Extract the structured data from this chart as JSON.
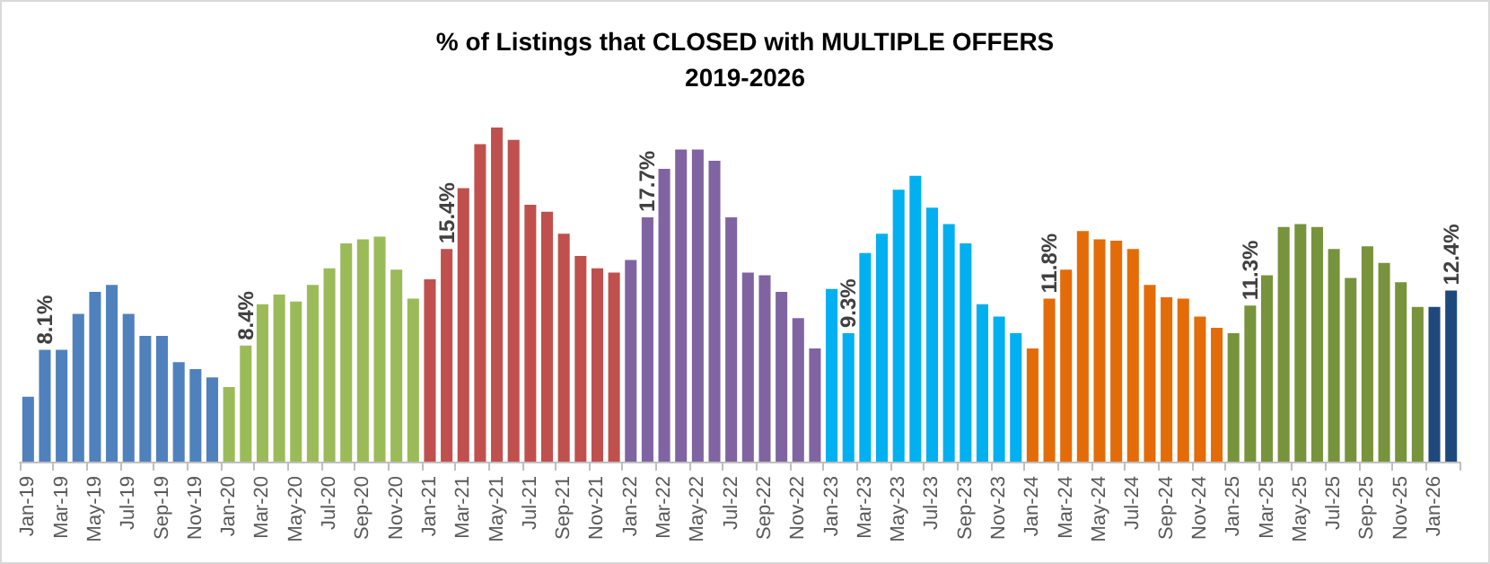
{
  "chart_data": {
    "type": "bar",
    "title": "% of Listings that CLOSED with MULTIPLE OFFERS",
    "subtitle": "2019-2026",
    "categories": [
      "Jan-19",
      null,
      "Mar-19",
      null,
      "May-19",
      null,
      "Jul-19",
      null,
      "Sep-19",
      null,
      "Nov-19",
      null,
      "Jan-20",
      null,
      "Mar-20",
      null,
      "May-20",
      null,
      "Jul-20",
      null,
      "Sep-20",
      null,
      "Nov-20",
      null,
      "Jan-21",
      null,
      "Mar-21",
      null,
      "May-21",
      null,
      "Jul-21",
      null,
      "Sep-21",
      null,
      "Nov-21",
      null,
      "Jan-22",
      null,
      "Mar-22",
      null,
      "May-22",
      null,
      "Jul-22",
      null,
      "Sep-22",
      null,
      "Nov-22",
      null,
      "Jan-23",
      null,
      "Mar-23",
      null,
      "May-23",
      null,
      "Jul-23",
      null,
      "Sep-23",
      null,
      "Nov-23",
      null,
      "Jan-24",
      null,
      "Mar-24",
      null,
      "May-24",
      null,
      "Jul-24",
      null,
      "Sep-24",
      null,
      "Nov-24",
      null,
      "Jan-25",
      null,
      "Mar-25",
      null,
      "May-25",
      null,
      "Jul-25",
      null,
      "Sep-25",
      null,
      "Nov-25",
      null,
      "Jan-26",
      null
    ],
    "values": [
      4.7,
      8.1,
      8.1,
      10.7,
      12.3,
      12.8,
      10.7,
      9.1,
      9.1,
      7.2,
      6.7,
      6.1,
      5.4,
      8.4,
      11.4,
      12.1,
      11.6,
      12.8,
      14.0,
      15.8,
      16.1,
      16.3,
      13.9,
      11.8,
      13.2,
      15.4,
      19.8,
      23.0,
      24.2,
      23.3,
      18.6,
      18.1,
      16.5,
      14.9,
      14.0,
      13.7,
      14.6,
      17.7,
      21.2,
      22.6,
      22.6,
      21.8,
      17.7,
      13.7,
      13.5,
      12.3,
      10.4,
      8.2,
      12.5,
      9.3,
      15.1,
      16.5,
      19.7,
      20.7,
      18.4,
      17.2,
      15.8,
      11.4,
      10.5,
      9.3,
      8.2,
      11.8,
      13.9,
      16.7,
      16.1,
      16.0,
      15.4,
      12.8,
      11.9,
      11.8,
      10.5,
      9.7,
      9.3,
      11.3,
      13.5,
      17.0,
      17.2,
      17.0,
      15.4,
      13.3,
      15.6,
      14.4,
      13.0,
      11.2,
      11.2,
      12.4
    ],
    "value_labels": [
      null,
      "8.1%",
      null,
      null,
      null,
      null,
      null,
      null,
      null,
      null,
      null,
      null,
      null,
      "8.4%",
      null,
      null,
      null,
      null,
      null,
      null,
      null,
      null,
      null,
      null,
      null,
      "15.4%",
      null,
      null,
      null,
      null,
      null,
      null,
      null,
      null,
      null,
      null,
      null,
      "17.7%",
      null,
      null,
      null,
      null,
      null,
      null,
      null,
      null,
      null,
      null,
      null,
      "9.3%",
      null,
      null,
      null,
      null,
      null,
      null,
      null,
      null,
      null,
      null,
      null,
      "11.8%",
      null,
      null,
      null,
      null,
      null,
      null,
      null,
      null,
      null,
      null,
      null,
      "11.3%",
      null,
      null,
      null,
      null,
      null,
      null,
      null,
      null,
      null,
      null,
      null,
      "12.4%"
    ],
    "colors": [
      "#4f81bd",
      "#4f81bd",
      "#4f81bd",
      "#4f81bd",
      "#4f81bd",
      "#4f81bd",
      "#4f81bd",
      "#4f81bd",
      "#4f81bd",
      "#4f81bd",
      "#4f81bd",
      "#4f81bd",
      "#9bbb59",
      "#9bbb59",
      "#9bbb59",
      "#9bbb59",
      "#9bbb59",
      "#9bbb59",
      "#9bbb59",
      "#9bbb59",
      "#9bbb59",
      "#9bbb59",
      "#9bbb59",
      "#9bbb59",
      "#c0504d",
      "#c0504d",
      "#c0504d",
      "#c0504d",
      "#c0504d",
      "#c0504d",
      "#c0504d",
      "#c0504d",
      "#c0504d",
      "#c0504d",
      "#c0504d",
      "#c0504d",
      "#8064a2",
      "#8064a2",
      "#8064a2",
      "#8064a2",
      "#8064a2",
      "#8064a2",
      "#8064a2",
      "#8064a2",
      "#8064a2",
      "#8064a2",
      "#8064a2",
      "#8064a2",
      "#00b0f0",
      "#00b0f0",
      "#00b0f0",
      "#00b0f0",
      "#00b0f0",
      "#00b0f0",
      "#00b0f0",
      "#00b0f0",
      "#00b0f0",
      "#00b0f0",
      "#00b0f0",
      "#00b0f0",
      "#e36c09",
      "#e36c09",
      "#e36c09",
      "#e36c09",
      "#e36c09",
      "#e36c09",
      "#e36c09",
      "#e36c09",
      "#e36c09",
      "#e36c09",
      "#e36c09",
      "#e36c09",
      "#77933c",
      "#77933c",
      "#77933c",
      "#77933c",
      "#77933c",
      "#77933c",
      "#77933c",
      "#77933c",
      "#77933c",
      "#77933c",
      "#77933c",
      "#77933c",
      "#1f497d",
      "#1f497d"
    ],
    "grid": false
  }
}
